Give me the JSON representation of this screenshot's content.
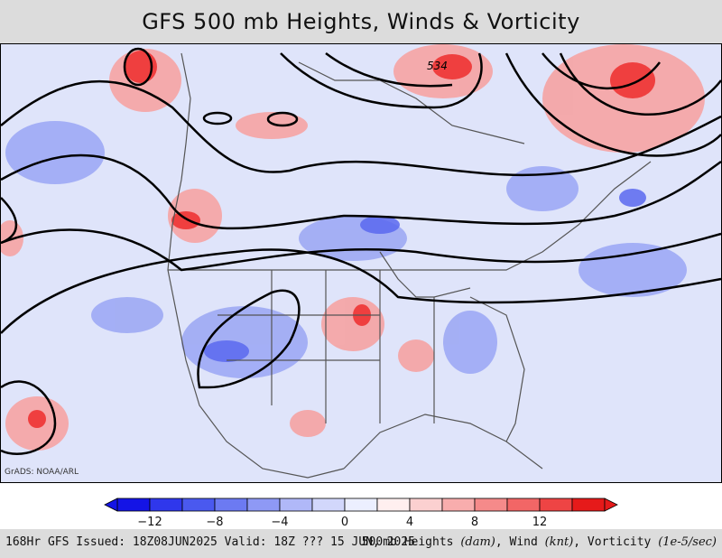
{
  "title": "GFS 500 mb Heights, Winds & Vorticity",
  "credit": "GrADS: NOAA/ARL",
  "contour_label": "534",
  "colorbar": {
    "labels": [
      "−12",
      "−8",
      "−4",
      "0",
      "4",
      "8",
      "12"
    ],
    "colors": [
      "#1414e6",
      "#2f37ec",
      "#4a59ef",
      "#6c7af2",
      "#8e99f5",
      "#b0b8f8",
      "#d2d7fb",
      "#ecefff",
      "#ffefef",
      "#fbd0d0",
      "#f8adad",
      "#f58a8a",
      "#f26666",
      "#ee4444",
      "#e61a1a"
    ]
  },
  "footer": {
    "left": "168Hr GFS Issued: 18Z08JUN2025 Valid: 18Z ??? 15 JUN, 2025",
    "right_prefix": "500mb Heights ",
    "right_u1": "(dam)",
    "right_mid1": ", Wind ",
    "right_u2": "(knt)",
    "right_mid2": ", Vorticity ",
    "right_u3": "(1e-5/sec)"
  }
}
